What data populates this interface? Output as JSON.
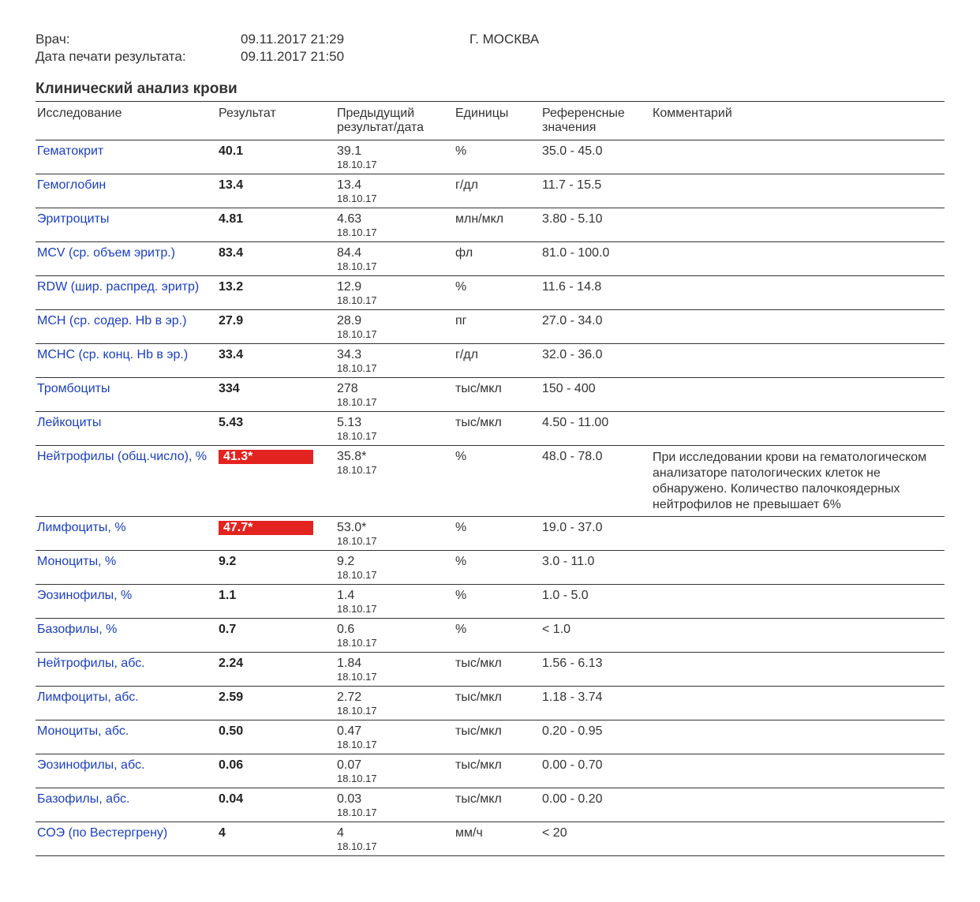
{
  "header": {
    "doctor_label": "Врач:",
    "doctor_date": "09.11.2017 21:29",
    "print_label": "Дата печати результата:",
    "print_date": "09.11.2017 21:50",
    "city": "Г. МОСКВА"
  },
  "section_title": "Клинический анализ крови",
  "columns": {
    "test": "Исследование",
    "result": "Результат",
    "prev": "Предыдущий результат/дата",
    "units": "Единицы",
    "ref": "Референсные значения",
    "comment": "Комментарий"
  },
  "flag_color": "#e3231f",
  "link_color": "#1a3fbf",
  "rows": [
    {
      "test": "Гематокрит",
      "result": "40.1",
      "flag": false,
      "prev": "39.1",
      "prev_date": "18.10.17",
      "units": "%",
      "ref": "35.0 - 45.0",
      "comment": ""
    },
    {
      "test": "Гемоглобин",
      "result": "13.4",
      "flag": false,
      "prev": "13.4",
      "prev_date": "18.10.17",
      "units": "г/дл",
      "ref": "11.7 - 15.5",
      "comment": ""
    },
    {
      "test": "Эритроциты",
      "result": "4.81",
      "flag": false,
      "prev": "4.63",
      "prev_date": "18.10.17",
      "units": "млн/мкл",
      "ref": "3.80 - 5.10",
      "comment": ""
    },
    {
      "test": "MCV (ср. объем эритр.)",
      "result": "83.4",
      "flag": false,
      "prev": "84.4",
      "prev_date": "18.10.17",
      "units": "фл",
      "ref": "81.0 - 100.0",
      "comment": ""
    },
    {
      "test": "RDW (шир. распред. эритр)",
      "result": "13.2",
      "flag": false,
      "prev": "12.9",
      "prev_date": "18.10.17",
      "units": "%",
      "ref": "11.6 - 14.8",
      "comment": ""
    },
    {
      "test": "MCH (ср. содер. Hb в эр.)",
      "result": "27.9",
      "flag": false,
      "prev": "28.9",
      "prev_date": "18.10.17",
      "units": "пг",
      "ref": "27.0 - 34.0",
      "comment": ""
    },
    {
      "test": "MCHC (ср. конц. Hb в эр.)",
      "result": "33.4",
      "flag": false,
      "prev": "34.3",
      "prev_date": "18.10.17",
      "units": "г/дл",
      "ref": "32.0 - 36.0",
      "comment": ""
    },
    {
      "test": "Тромбоциты",
      "result": "334",
      "flag": false,
      "prev": "278",
      "prev_date": "18.10.17",
      "units": "тыс/мкл",
      "ref": "150 - 400",
      "comment": ""
    },
    {
      "test": "Лейкоциты",
      "result": "5.43",
      "flag": false,
      "prev": "5.13",
      "prev_date": "18.10.17",
      "units": "тыс/мкл",
      "ref": "4.50 - 11.00",
      "comment": ""
    },
    {
      "test": "Нейтрофилы (общ.число), %",
      "result": "41.3*",
      "flag": true,
      "prev": "35.8*",
      "prev_date": "18.10.17",
      "units": "%",
      "ref": "48.0 - 78.0",
      "comment": "При исследовании крови на гематологическом анализаторе патологических клеток не обнаружено. Количество палочкоядерных нейтрофилов не превышает 6%"
    },
    {
      "test": "Лимфоциты, %",
      "result": "47.7*",
      "flag": true,
      "prev": "53.0*",
      "prev_date": "18.10.17",
      "units": "%",
      "ref": "19.0 - 37.0",
      "comment": ""
    },
    {
      "test": "Моноциты, %",
      "result": "9.2",
      "flag": false,
      "prev": "9.2",
      "prev_date": "18.10.17",
      "units": "%",
      "ref": "3.0 - 11.0",
      "comment": ""
    },
    {
      "test": "Эозинофилы, %",
      "result": "1.1",
      "flag": false,
      "prev": "1.4",
      "prev_date": "18.10.17",
      "units": "%",
      "ref": "1.0 - 5.0",
      "comment": ""
    },
    {
      "test": "Базофилы, %",
      "result": "0.7",
      "flag": false,
      "prev": "0.6",
      "prev_date": "18.10.17",
      "units": "%",
      "ref": "< 1.0",
      "comment": ""
    },
    {
      "test": "Нейтрофилы, абс.",
      "result": "2.24",
      "flag": false,
      "prev": "1.84",
      "prev_date": "18.10.17",
      "units": "тыс/мкл",
      "ref": "1.56 - 6.13",
      "comment": ""
    },
    {
      "test": "Лимфоциты, абс.",
      "result": "2.59",
      "flag": false,
      "prev": "2.72",
      "prev_date": "18.10.17",
      "units": "тыс/мкл",
      "ref": "1.18 - 3.74",
      "comment": ""
    },
    {
      "test": "Моноциты, абс.",
      "result": "0.50",
      "flag": false,
      "prev": "0.47",
      "prev_date": "18.10.17",
      "units": "тыс/мкл",
      "ref": "0.20 - 0.95",
      "comment": ""
    },
    {
      "test": "Эозинофилы, абс.",
      "result": "0.06",
      "flag": false,
      "prev": "0.07",
      "prev_date": "18.10.17",
      "units": "тыс/мкл",
      "ref": "0.00 - 0.70",
      "comment": ""
    },
    {
      "test": "Базофилы, абс.",
      "result": "0.04",
      "flag": false,
      "prev": "0.03",
      "prev_date": "18.10.17",
      "units": "тыс/мкл",
      "ref": "0.00 - 0.20",
      "comment": ""
    },
    {
      "test": "СОЭ (по Вестергрену)",
      "result": "4",
      "flag": false,
      "prev": "4",
      "prev_date": "18.10.17",
      "units": "мм/ч",
      "ref": "< 20",
      "comment": ""
    }
  ]
}
